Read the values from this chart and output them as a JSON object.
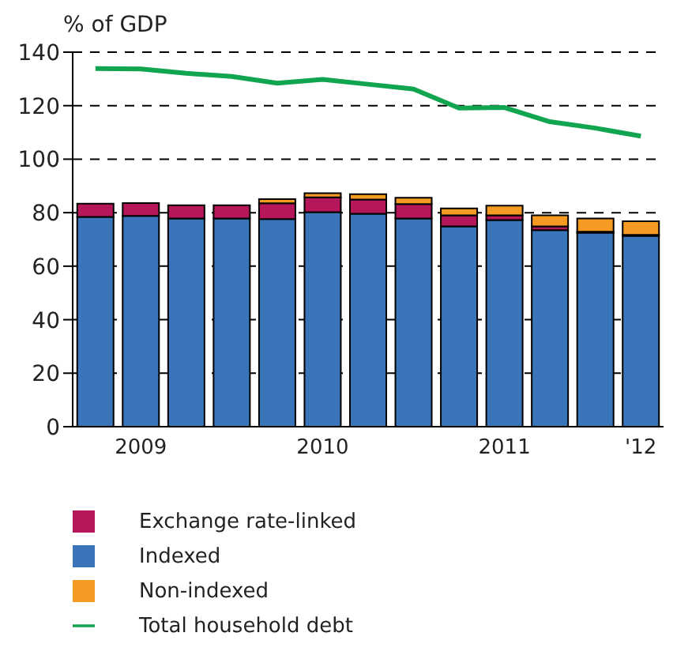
{
  "chart_data": {
    "type": "bar",
    "ylabel": "% of GDP",
    "stacked": true,
    "categories": [
      null,
      "2009",
      null,
      null,
      null,
      "2010",
      null,
      null,
      null,
      "2011",
      null,
      null,
      "'12"
    ],
    "series": [
      {
        "name": "Indexed",
        "color": "#3a75b9",
        "values": [
          78.4,
          78.8,
          77.8,
          77.8,
          77.6,
          80.2,
          79.6,
          77.8,
          74.9,
          77.2,
          73.5,
          72.5,
          71.3
        ]
      },
      {
        "name": "Exchange rate-linked",
        "color": "#b5175a",
        "values": [
          5.0,
          4.8,
          5.0,
          5.0,
          5.9,
          5.5,
          5.3,
          5.4,
          4.1,
          1.8,
          1.4,
          0.4,
          0.4
        ]
      },
      {
        "name": "Non-indexed",
        "color": "#f59a23",
        "values": [
          0,
          0,
          0,
          0,
          1.6,
          1.6,
          2.0,
          2.4,
          2.6,
          3.6,
          4.1,
          4.9,
          5.1
        ]
      },
      {
        "name": "Total household debt",
        "type": "line",
        "color": "#12a550",
        "values": [
          133.9,
          133.7,
          132.1,
          130.9,
          128.4,
          129.8,
          128,
          126.2,
          119.1,
          119.3,
          114,
          111.6,
          108.6
        ]
      }
    ],
    "ylim": [
      0,
      140
    ],
    "yticks": [
      0,
      20,
      40,
      60,
      80,
      100,
      120,
      140
    ],
    "grid": "y",
    "legend": "bottom",
    "marker": "none"
  }
}
